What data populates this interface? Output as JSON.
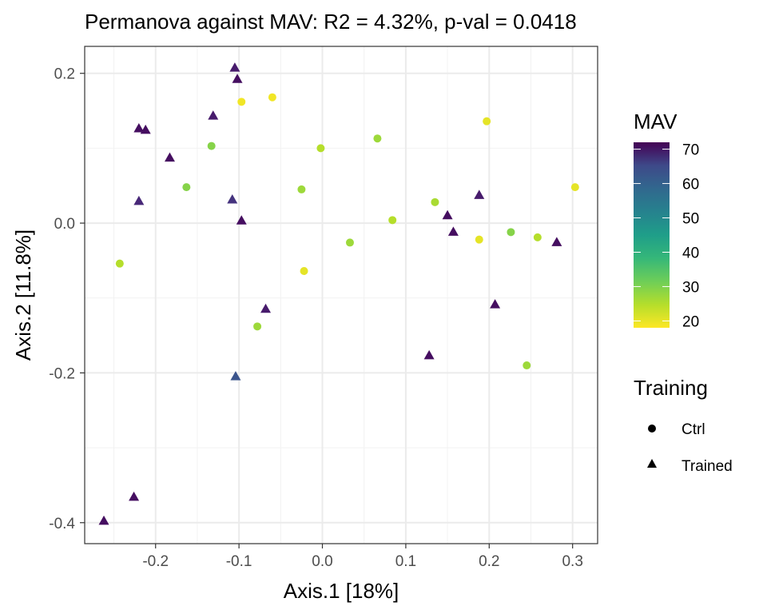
{
  "chart_data": {
    "type": "scatter",
    "title": "Permanova against MAV: R2 = 4.32%, p-val = 0.0418",
    "xlabel": "Axis.1   [18%]",
    "ylabel": "Axis.2   [11.8%]",
    "xlim": [
      -0.285,
      0.33
    ],
    "ylim": [
      -0.428,
      0.236
    ],
    "x_ticks": [
      -0.2,
      -0.1,
      0.0,
      0.1,
      0.2,
      0.3
    ],
    "x_tick_labels": [
      "-0.2",
      "-0.1",
      "0.0",
      "0.1",
      "0.2",
      "0.3"
    ],
    "y_ticks": [
      0.2,
      0.0,
      -0.2,
      -0.4
    ],
    "y_tick_labels": [
      "0.2",
      "0.0",
      "-0.2",
      "-0.4"
    ],
    "grid": true,
    "color_legend": {
      "title": "MAV",
      "ticks": [
        70,
        60,
        50,
        40,
        30,
        20
      ],
      "range": [
        18,
        72
      ],
      "palette": "viridis"
    },
    "shape_legend": {
      "title": "Training",
      "entries": [
        {
          "label": "Ctrl",
          "shape": "circle"
        },
        {
          "label": "Trained",
          "shape": "triangle"
        }
      ]
    },
    "points": [
      {
        "x": -0.097,
        "y": 0.162,
        "mav": 19,
        "group": "Ctrl"
      },
      {
        "x": -0.06,
        "y": 0.168,
        "mav": 19,
        "group": "Ctrl"
      },
      {
        "x": 0.197,
        "y": 0.136,
        "mav": 20,
        "group": "Ctrl"
      },
      {
        "x": -0.133,
        "y": 0.103,
        "mav": 28,
        "group": "Ctrl"
      },
      {
        "x": -0.002,
        "y": 0.1,
        "mav": 24,
        "group": "Ctrl"
      },
      {
        "x": 0.066,
        "y": 0.113,
        "mav": 26,
        "group": "Ctrl"
      },
      {
        "x": -0.163,
        "y": 0.048,
        "mav": 28,
        "group": "Ctrl"
      },
      {
        "x": -0.025,
        "y": 0.045,
        "mav": 26,
        "group": "Ctrl"
      },
      {
        "x": 0.135,
        "y": 0.028,
        "mav": 25,
        "group": "Ctrl"
      },
      {
        "x": 0.303,
        "y": 0.048,
        "mav": 20,
        "group": "Ctrl"
      },
      {
        "x": 0.084,
        "y": 0.004,
        "mav": 24,
        "group": "Ctrl"
      },
      {
        "x": 0.226,
        "y": -0.012,
        "mav": 28,
        "group": "Ctrl"
      },
      {
        "x": 0.258,
        "y": -0.019,
        "mav": 24,
        "group": "Ctrl"
      },
      {
        "x": 0.188,
        "y": -0.022,
        "mav": 20,
        "group": "Ctrl"
      },
      {
        "x": 0.033,
        "y": -0.026,
        "mav": 26,
        "group": "Ctrl"
      },
      {
        "x": -0.243,
        "y": -0.054,
        "mav": 24,
        "group": "Ctrl"
      },
      {
        "x": -0.022,
        "y": -0.064,
        "mav": 20,
        "group": "Ctrl"
      },
      {
        "x": -0.078,
        "y": -0.138,
        "mav": 26,
        "group": "Ctrl"
      },
      {
        "x": 0.245,
        "y": -0.19,
        "mav": 26,
        "group": "Ctrl"
      },
      {
        "x": -0.105,
        "y": 0.207,
        "mav": 68,
        "group": "Trained"
      },
      {
        "x": -0.102,
        "y": 0.192,
        "mav": 70,
        "group": "Trained"
      },
      {
        "x": -0.22,
        "y": 0.126,
        "mav": 70,
        "group": "Trained"
      },
      {
        "x": -0.212,
        "y": 0.124,
        "mav": 70,
        "group": "Trained"
      },
      {
        "x": -0.131,
        "y": 0.143,
        "mav": 68,
        "group": "Trained"
      },
      {
        "x": -0.183,
        "y": 0.087,
        "mav": 70,
        "group": "Trained"
      },
      {
        "x": -0.22,
        "y": 0.029,
        "mav": 66,
        "group": "Trained"
      },
      {
        "x": -0.108,
        "y": 0.031,
        "mav": 64,
        "group": "Trained"
      },
      {
        "x": -0.097,
        "y": 0.003,
        "mav": 70,
        "group": "Trained"
      },
      {
        "x": 0.15,
        "y": 0.01,
        "mav": 70,
        "group": "Trained"
      },
      {
        "x": 0.188,
        "y": 0.037,
        "mav": 68,
        "group": "Trained"
      },
      {
        "x": 0.157,
        "y": -0.012,
        "mav": 70,
        "group": "Trained"
      },
      {
        "x": 0.281,
        "y": -0.026,
        "mav": 70,
        "group": "Trained"
      },
      {
        "x": -0.068,
        "y": -0.115,
        "mav": 68,
        "group": "Trained"
      },
      {
        "x": 0.207,
        "y": -0.109,
        "mav": 70,
        "group": "Trained"
      },
      {
        "x": 0.128,
        "y": -0.177,
        "mav": 70,
        "group": "Trained"
      },
      {
        "x": -0.104,
        "y": -0.205,
        "mav": 58,
        "group": "Trained"
      },
      {
        "x": -0.226,
        "y": -0.366,
        "mav": 70,
        "group": "Trained"
      },
      {
        "x": -0.262,
        "y": -0.398,
        "mav": 70,
        "group": "Trained"
      }
    ]
  }
}
